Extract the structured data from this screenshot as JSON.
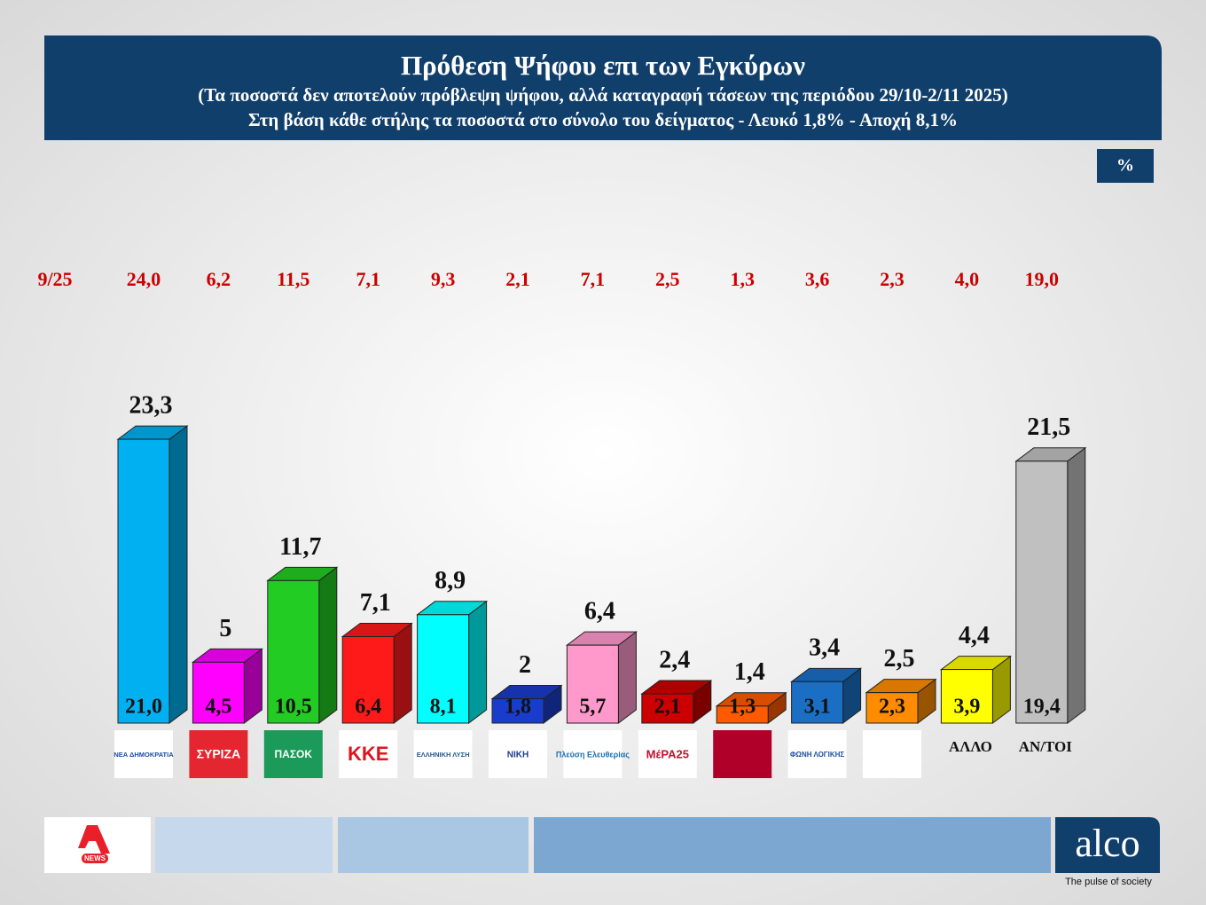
{
  "chart_data": {
    "type": "bar3d",
    "title": "Πρόθεση Ψήφου επι των Εγκύρων",
    "subtitle": "(Τα ποσοστά δεν αποτελούν πρόβλεψη ψήφου, αλλά καταγραφή τάσεων της περιόδου  29/10-2/11 2025)",
    "note": "Στη βάση κάθε στήλης τα ποσοστά στο σύνολο του δείγματος - Λευκό 1,8% - Αποχή 8,1%",
    "unit": "%",
    "categories": [
      "ΝΕΑ ΔΗΜΟΚΡΑΤΙΑ",
      "ΣΥΡΙΖΑ",
      "ΠΑΣΟΚ",
      "ΚΚΕ",
      "ΕΛΛΗΝΙΚΗ ΛΥΣΗ",
      "ΝΙΚΗ",
      "Πλεύση Ελευθερίας",
      "ΜέΡΑ25",
      null,
      "ΦΩΝΗ ΛΟΓΙΚΗΣ",
      null,
      "ΑΛΛΟ",
      "ΑΝ/ΤΟΙ"
    ],
    "colors": [
      "#00b0f0",
      "#ff00ff",
      "#22cc22",
      "#ff1a1a",
      "#00ffff",
      "#1a3ccc",
      "#ff99cc",
      "#cc0000",
      "#ff5a00",
      "#1a6fc4",
      "#ff8c00",
      "#ffff00",
      "#c0c0c0"
    ],
    "series": [
      {
        "values": [
          23.3,
          5,
          11.7,
          7.1,
          8.9,
          2,
          6.4,
          2.4,
          1.4,
          3.4,
          2.5,
          4.4,
          21.5
        ],
        "value_labels": [
          "23,3",
          "5",
          "11,7",
          "7,1",
          "8,9",
          "2",
          "6,4",
          "2,4",
          "1,4",
          "3,4",
          "2,5",
          "4,4",
          "21,5"
        ]
      },
      {
        "values": [
          21.0,
          4.5,
          10.5,
          6.4,
          8.1,
          1.8,
          5.7,
          2.1,
          1.3,
          3.1,
          2.3,
          3.9,
          19.4
        ],
        "value_labels": [
          "21,0",
          "4,5",
          "10,5",
          "6,4",
          "8,1",
          "1,8",
          "5,7",
          "2,1",
          "1,3",
          "3,1",
          "2,3",
          "3,9",
          "19,4"
        ]
      },
      {
        "name": "9/25",
        "values": [
          24.0,
          6.2,
          11.5,
          7.1,
          9.3,
          2.1,
          7.1,
          2.5,
          1.3,
          3.6,
          2.3,
          4.0,
          19.0
        ],
        "value_labels": [
          "24,0",
          "6,2",
          "11,5",
          "7,1",
          "9,3",
          "2,1",
          "7,1",
          "2,5",
          "1,3",
          "3,6",
          "2,3",
          "4,0",
          "19,0"
        ]
      }
    ]
  },
  "footer": {
    "news": "NEWS",
    "brand": "alco",
    "tagline": "The pulse of society"
  }
}
